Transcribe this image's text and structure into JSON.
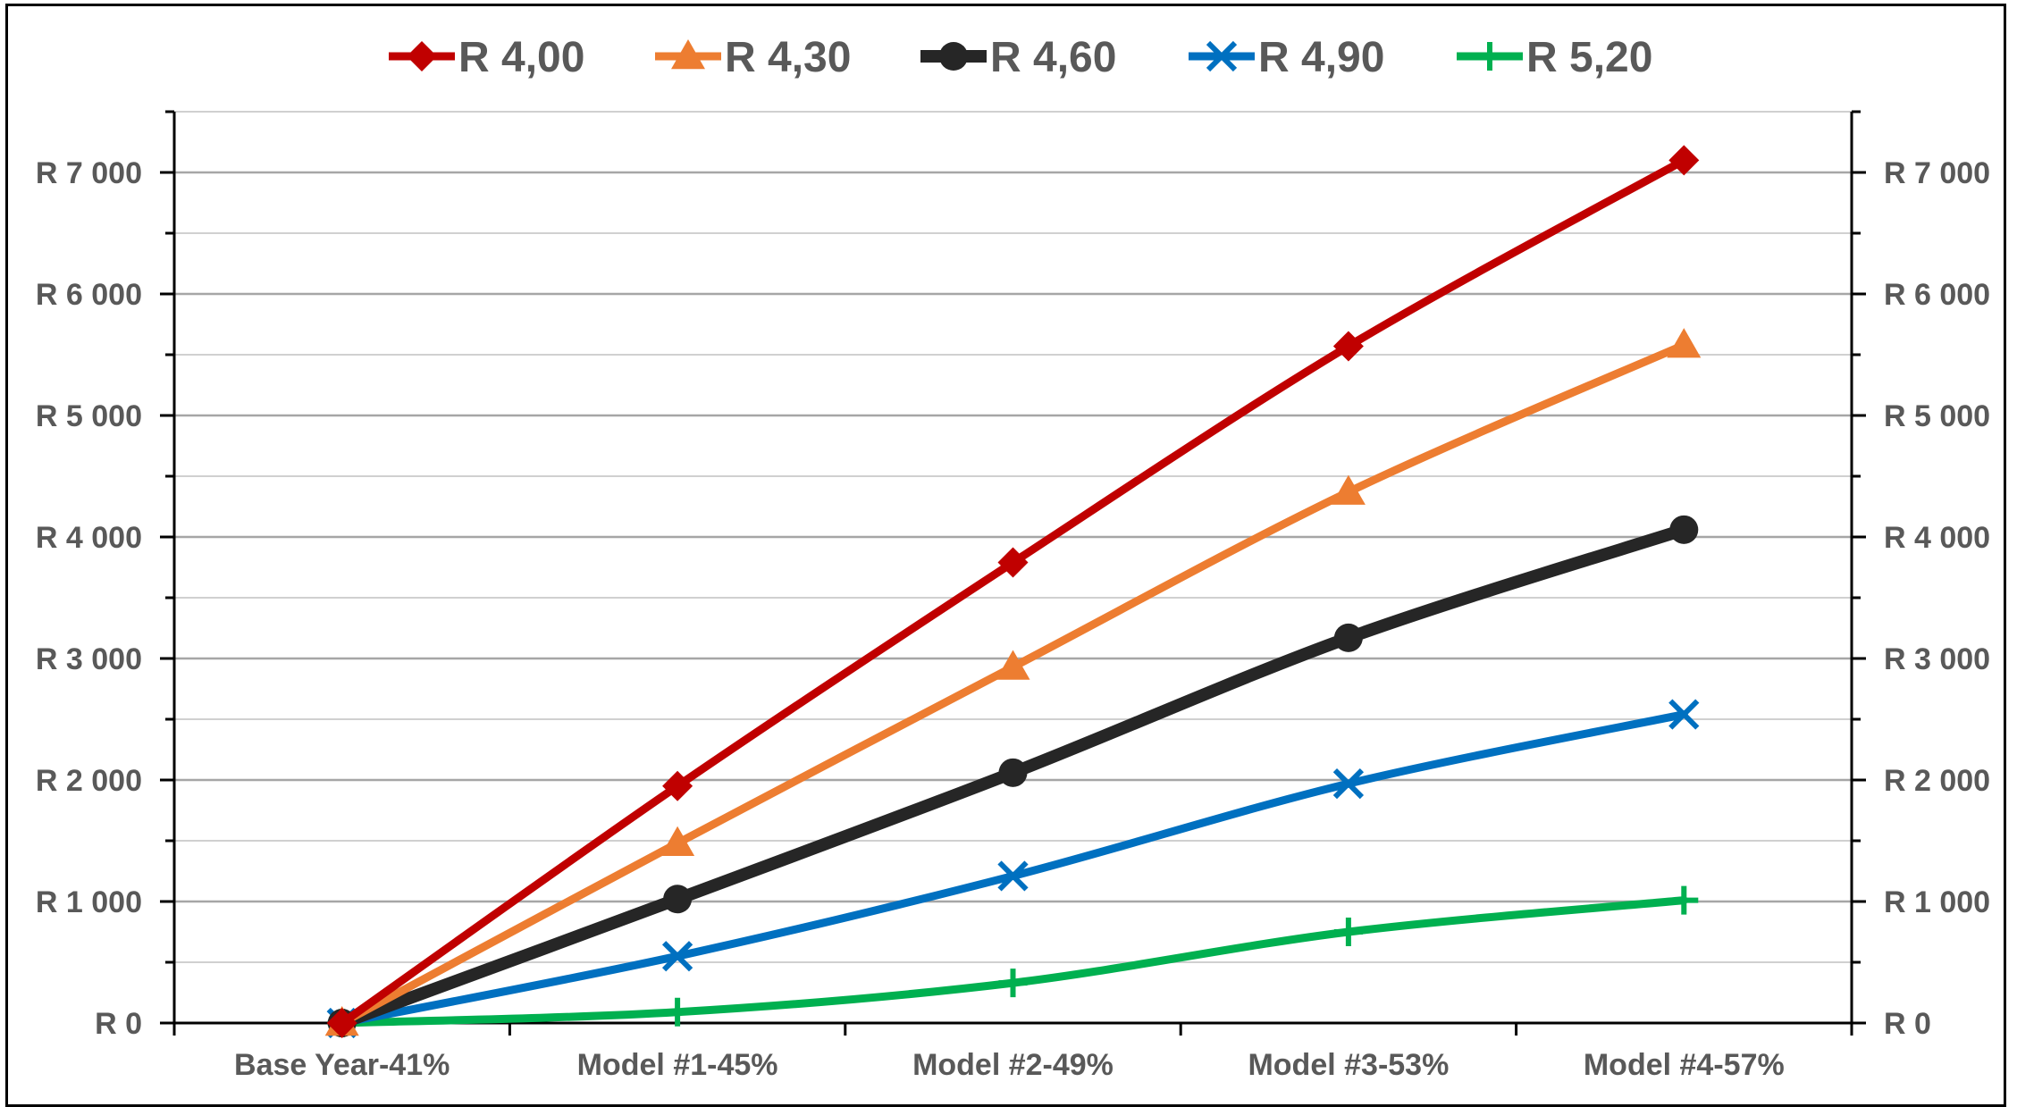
{
  "chart_data": {
    "type": "line",
    "title": "",
    "xlabel": "",
    "ylabel": "",
    "categories": [
      "Base Year-41%",
      "Model #1-45%",
      "Model #2-49%",
      "Model #3-53%",
      "Model #4-57%"
    ],
    "ylim": [
      0,
      7500
    ],
    "yticks": [
      0,
      1000,
      2000,
      3000,
      4000,
      5000,
      6000,
      7000
    ],
    "ytick_labels": [
      "R 0",
      "R 1 000",
      "R 2 000",
      "R 3 000",
      "R 4 000",
      "R 5 000",
      "R 6 000",
      "R 7 000"
    ],
    "secondary_y_axis": true,
    "grid": true,
    "legend_position": "top",
    "series": [
      {
        "name": "R 4,00",
        "values": [
          0,
          1950,
          3790,
          5570,
          7100
        ],
        "color": "#C00000",
        "marker": "diamond",
        "line_width": 9
      },
      {
        "name": "R 4,30",
        "values": [
          0,
          1480,
          2930,
          4370,
          5580
        ],
        "color": "#ED7D31",
        "marker": "triangle",
        "line_width": 9
      },
      {
        "name": "R 4,60",
        "values": [
          0,
          1020,
          2060,
          3170,
          4060
        ],
        "color": "#262626",
        "marker": "circle",
        "line_width": 14
      },
      {
        "name": "R 4,90",
        "values": [
          0,
          550,
          1210,
          1970,
          2540
        ],
        "color": "#0070C0",
        "marker": "x",
        "line_width": 9
      },
      {
        "name": "R 5,20",
        "values": [
          0,
          90,
          330,
          750,
          1010
        ],
        "color": "#00B050",
        "marker": "plus",
        "line_width": 9
      }
    ]
  }
}
